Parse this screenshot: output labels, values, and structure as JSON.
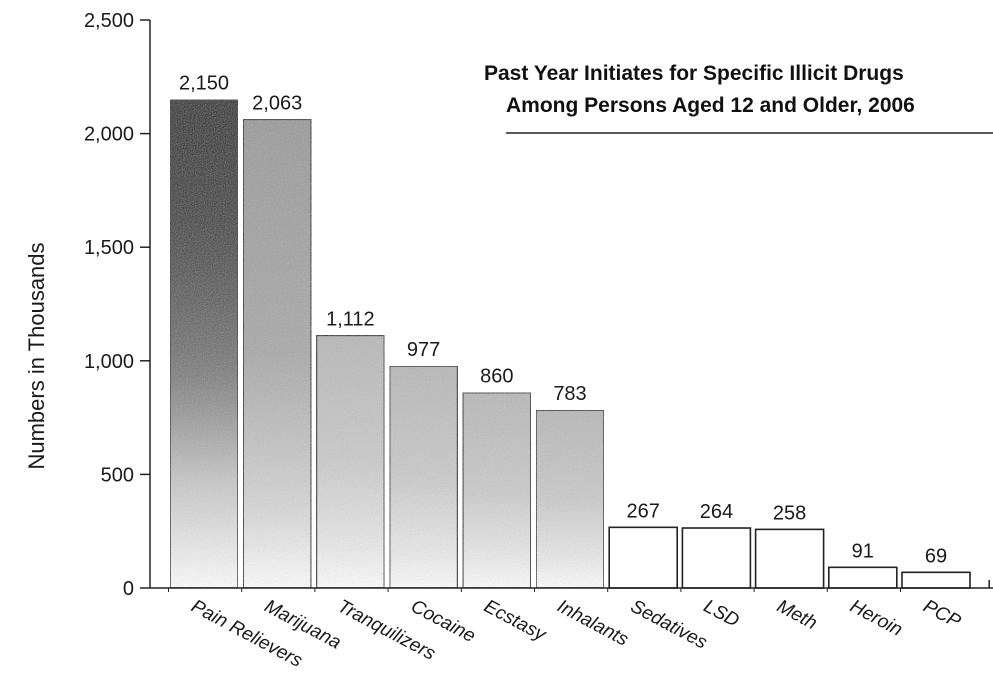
{
  "chart_data": {
    "type": "bar",
    "title_lines": [
      "Past Year Initiates for Specific Illicit Drugs",
      "Among Persons Aged 12 and Older, 2006"
    ],
    "ylabel": "Numbers in Thousands",
    "xlabel": "",
    "ylim": [
      0,
      2500
    ],
    "yticks": [
      0,
      500,
      1000,
      1500,
      2000,
      2500
    ],
    "ytick_labels": [
      "0",
      "500",
      "1,000",
      "1,500",
      "2,000",
      "2,500"
    ],
    "grid": false,
    "categories": [
      "Pain Relievers",
      "Marijuana",
      "Tranquilizers",
      "Cocaine",
      "Ecstasy",
      "Inhalants",
      "Sedatives",
      "LSD",
      "Meth",
      "Heroin",
      "PCP"
    ],
    "values": [
      2150,
      2063,
      1112,
      977,
      860,
      783,
      267,
      264,
      258,
      91,
      69
    ],
    "value_labels": [
      "2,150",
      "2,063",
      "1,112",
      "977",
      "860",
      "783",
      "267",
      "264",
      "258",
      "91",
      "69"
    ],
    "colors": {
      "dark_fill": "#1c1c1c",
      "mid_fill": "#8a8a8a",
      "light_fill": "#b5b5b5",
      "bar_outline": "#222222",
      "axis": "#222222"
    }
  }
}
